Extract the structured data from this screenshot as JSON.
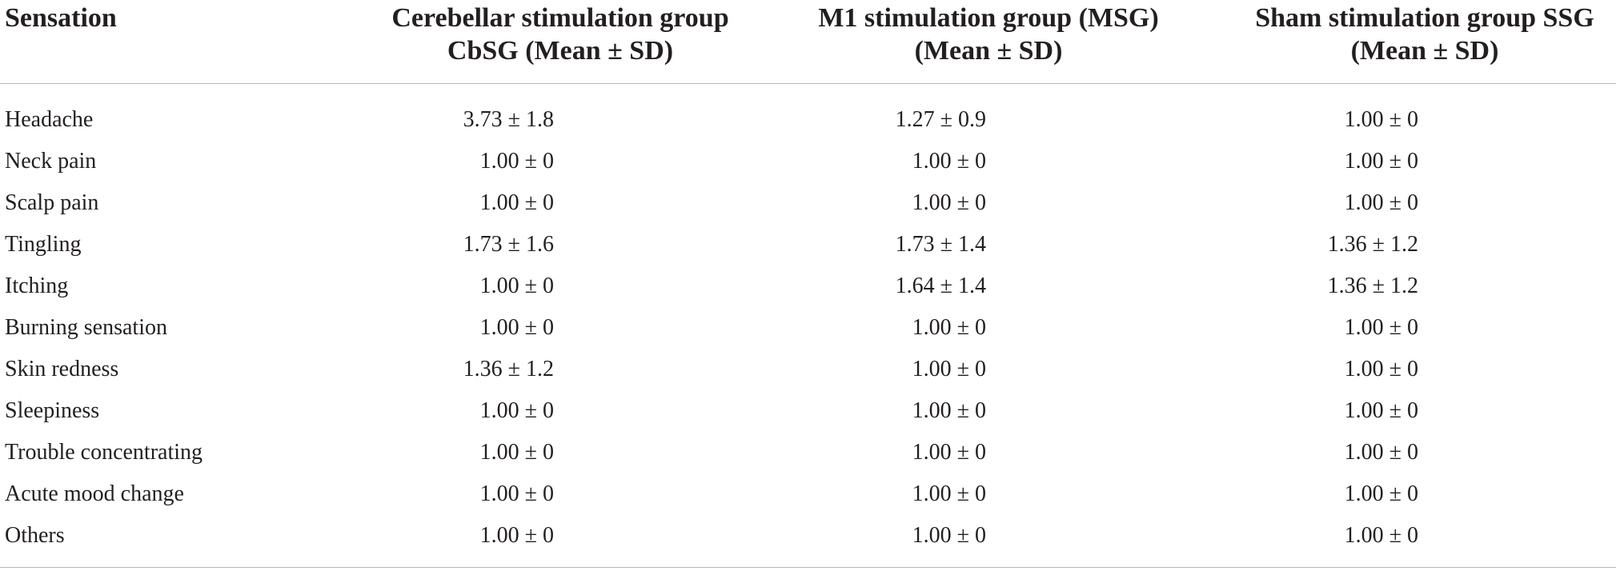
{
  "table": {
    "headers": {
      "sensation": "Sensation",
      "cbsg_line1": "Cerebellar stimulation group",
      "cbsg_line2": "CbSG (Mean ± SD)",
      "msg_line1": "M1 stimulation group (MSG)",
      "msg_line2": "(Mean ± SD)",
      "ssg_line1": "Sham stimulation group SSG",
      "ssg_line2": "(Mean ± SD)"
    },
    "rows": [
      {
        "sensation": "Headache",
        "cbsg": "3.73 ± 1.8",
        "msg": "1.27 ± 0.9",
        "ssg": "1.00 ± 0"
      },
      {
        "sensation": "Neck pain",
        "cbsg": "1.00 ± 0",
        "msg": "1.00 ± 0",
        "ssg": "1.00 ± 0"
      },
      {
        "sensation": "Scalp pain",
        "cbsg": "1.00 ± 0",
        "msg": "1.00 ± 0",
        "ssg": "1.00 ± 0"
      },
      {
        "sensation": "Tingling",
        "cbsg": "1.73 ± 1.6",
        "msg": "1.73 ± 1.4",
        "ssg": "1.36 ± 1.2"
      },
      {
        "sensation": "Itching",
        "cbsg": "1.00 ± 0",
        "msg": "1.64 ± 1.4",
        "ssg": "1.36 ± 1.2"
      },
      {
        "sensation": "Burning sensation",
        "cbsg": "1.00 ± 0",
        "msg": "1.00 ± 0",
        "ssg": "1.00 ± 0"
      },
      {
        "sensation": "Skin redness",
        "cbsg": "1.36 ± 1.2",
        "msg": "1.00 ± 0",
        "ssg": "1.00 ± 0"
      },
      {
        "sensation": "Sleepiness",
        "cbsg": "1.00 ± 0",
        "msg": "1.00 ± 0",
        "ssg": "1.00 ± 0"
      },
      {
        "sensation": "Trouble concentrating",
        "cbsg": "1.00 ± 0",
        "msg": "1.00 ± 0",
        "ssg": "1.00 ± 0"
      },
      {
        "sensation": "Acute mood change",
        "cbsg": "1.00 ± 0",
        "msg": "1.00 ± 0",
        "ssg": "1.00 ± 0"
      },
      {
        "sensation": "Others",
        "cbsg": "1.00 ± 0",
        "msg": "1.00 ± 0",
        "ssg": "1.00 ± 0"
      }
    ]
  }
}
